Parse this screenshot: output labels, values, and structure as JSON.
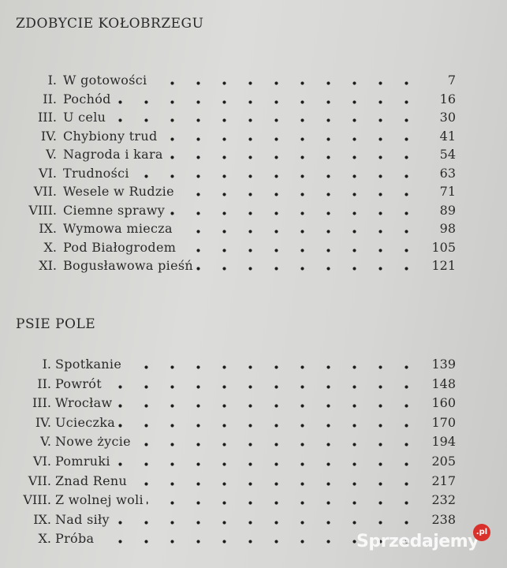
{
  "sections": [
    {
      "title": "ZDOBYCIE KOŁOBRZEGU",
      "entries": [
        {
          "numeral": "I.",
          "title": "W gotowości",
          "page": "7"
        },
        {
          "numeral": "II.",
          "title": "Pochód",
          "page": "16"
        },
        {
          "numeral": "III.",
          "title": "U celu",
          "page": "30"
        },
        {
          "numeral": "IV.",
          "title": "Chybiony trud",
          "page": "41"
        },
        {
          "numeral": "V.",
          "title": "Nagroda i kara",
          "page": "54"
        },
        {
          "numeral": "VI.",
          "title": "Trudności",
          "page": "63"
        },
        {
          "numeral": "VII.",
          "title": "Wesele w Rudzie",
          "page": "71"
        },
        {
          "numeral": "VIII.",
          "title": "Ciemne sprawy",
          "page": "89"
        },
        {
          "numeral": "IX.",
          "title": "Wymowa miecza",
          "page": "98"
        },
        {
          "numeral": "X.",
          "title": "Pod Białogrodem",
          "page": "105"
        },
        {
          "numeral": "XI.",
          "title": "Bogusławowa pieśń",
          "page": "121"
        }
      ]
    },
    {
      "title": "PSIE POLE",
      "entries": [
        {
          "numeral": "I.",
          "title": "Spotkanie",
          "page": "139"
        },
        {
          "numeral": "II.",
          "title": "Powrót",
          "page": "148"
        },
        {
          "numeral": "III.",
          "title": "Wrocław",
          "page": "160"
        },
        {
          "numeral": "IV.",
          "title": "Ucieczka",
          "page": "170"
        },
        {
          "numeral": "V.",
          "title": "Nowe życie",
          "page": "194"
        },
        {
          "numeral": "VI.",
          "title": "Pomruki",
          "page": "205"
        },
        {
          "numeral": "VII.",
          "title": "Znad Renu",
          "page": "217"
        },
        {
          "numeral": "VIII.",
          "title": "Z wolnej woli",
          "page": "232"
        },
        {
          "numeral": "IX.",
          "title": "Nad siły",
          "page": "238"
        },
        {
          "numeral": "X.",
          "title": "Próba",
          "page": ""
        }
      ]
    }
  ],
  "watermark": {
    "text": "Sprzedajemy",
    "badge": ".pl"
  }
}
